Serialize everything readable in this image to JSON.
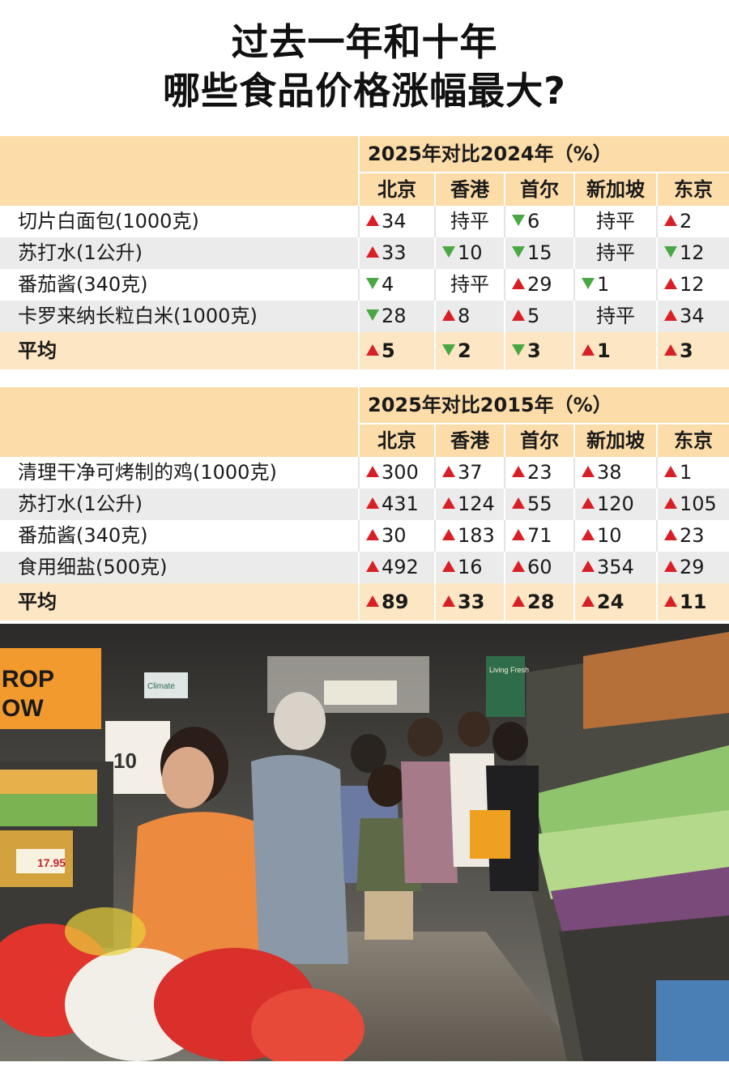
{
  "title": {
    "line1": "过去一年和十年",
    "line2": "哪些食品价格涨幅最大?"
  },
  "cities": [
    "北京",
    "香港",
    "首尔",
    "新加坡",
    "东京"
  ],
  "tables": [
    {
      "period": "2025年对比2024年（%）",
      "rows": [
        {
          "name": "切片白面包(1000克)",
          "values": [
            {
              "dir": "up",
              "text": "34"
            },
            {
              "dir": "flat",
              "text": "持平"
            },
            {
              "dir": "down",
              "text": "6"
            },
            {
              "dir": "flat",
              "text": "持平"
            },
            {
              "dir": "up",
              "text": "2"
            }
          ]
        },
        {
          "name": "苏打水(1公升)",
          "values": [
            {
              "dir": "up",
              "text": "33"
            },
            {
              "dir": "down",
              "text": "10"
            },
            {
              "dir": "down",
              "text": "15"
            },
            {
              "dir": "flat",
              "text": "持平"
            },
            {
              "dir": "down",
              "text": "12"
            }
          ]
        },
        {
          "name": "番茄酱(340克)",
          "values": [
            {
              "dir": "down",
              "text": "4"
            },
            {
              "dir": "flat",
              "text": "持平"
            },
            {
              "dir": "up",
              "text": "29"
            },
            {
              "dir": "down",
              "text": "1"
            },
            {
              "dir": "up",
              "text": "12"
            }
          ]
        },
        {
          "name": "卡罗来纳长粒白米(1000克)",
          "values": [
            {
              "dir": "down",
              "text": "28"
            },
            {
              "dir": "up",
              "text": "8"
            },
            {
              "dir": "up",
              "text": "5"
            },
            {
              "dir": "flat",
              "text": "持平"
            },
            {
              "dir": "up",
              "text": "34"
            }
          ]
        }
      ],
      "average": {
        "name": "平均",
        "values": [
          {
            "dir": "up",
            "text": "5"
          },
          {
            "dir": "down",
            "text": "2"
          },
          {
            "dir": "down",
            "text": "3"
          },
          {
            "dir": "up",
            "text": "1"
          },
          {
            "dir": "up",
            "text": "3"
          }
        ]
      }
    },
    {
      "period": "2025年对比2015年（%）",
      "rows": [
        {
          "name": "清理干净可烤制的鸡(1000克)",
          "values": [
            {
              "dir": "up",
              "text": "300"
            },
            {
              "dir": "up",
              "text": "37"
            },
            {
              "dir": "up",
              "text": "23"
            },
            {
              "dir": "up",
              "text": "38"
            },
            {
              "dir": "up",
              "text": "1"
            }
          ]
        },
        {
          "name": "苏打水(1公升)",
          "values": [
            {
              "dir": "up",
              "text": "431"
            },
            {
              "dir": "up",
              "text": "124"
            },
            {
              "dir": "up",
              "text": "55"
            },
            {
              "dir": "up",
              "text": "120"
            },
            {
              "dir": "up",
              "text": "105"
            }
          ]
        },
        {
          "name": "番茄酱(340克)",
          "values": [
            {
              "dir": "up",
              "text": "30"
            },
            {
              "dir": "up",
              "text": "183"
            },
            {
              "dir": "up",
              "text": "71"
            },
            {
              "dir": "up",
              "text": "10"
            },
            {
              "dir": "up",
              "text": "23"
            }
          ]
        },
        {
          "name": "食用细盐(500克)",
          "values": [
            {
              "dir": "up",
              "text": "492"
            },
            {
              "dir": "up",
              "text": "16"
            },
            {
              "dir": "up",
              "text": "60"
            },
            {
              "dir": "up",
              "text": "354"
            },
            {
              "dir": "up",
              "text": "29"
            }
          ]
        }
      ],
      "average": {
        "name": "平均",
        "values": [
          {
            "dir": "up",
            "text": "89"
          },
          {
            "dir": "up",
            "text": "33"
          },
          {
            "dir": "up",
            "text": "28"
          },
          {
            "dir": "up",
            "text": "24"
          },
          {
            "dir": "up",
            "text": "11"
          }
        ]
      }
    }
  ],
  "photo": {
    "signs": [
      "ROP",
      "OW",
      "10",
      "17.95",
      "Living Fresh",
      "Climate"
    ],
    "colors": {
      "up": "#d91f26",
      "down": "#4aa844",
      "header": "#fcdca8",
      "avg_row": "#fce6c4",
      "alt_row": "#ebebeb"
    }
  }
}
